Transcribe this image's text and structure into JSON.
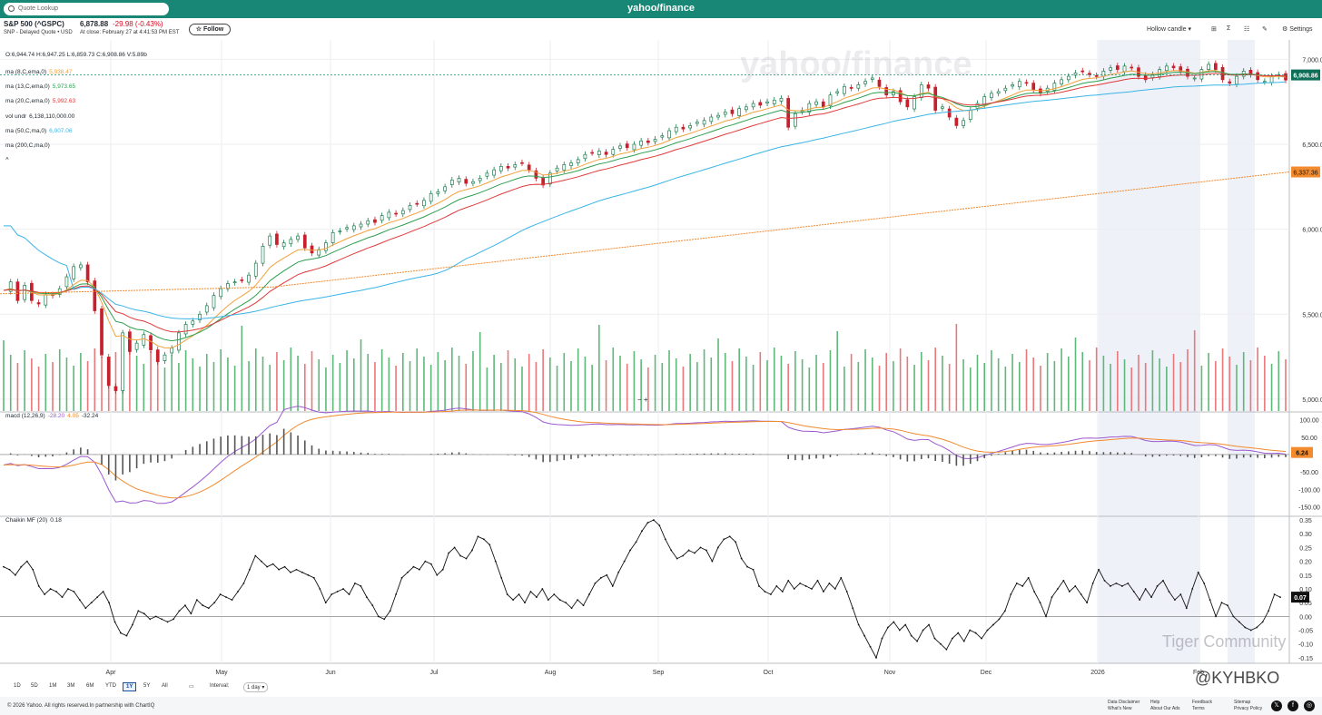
{
  "header": {
    "search_placeholder": "Quote Lookup",
    "logo": "yahoo/finance"
  },
  "quote": {
    "title": "S&P 500 (^GSPC)",
    "subtitle": "SNP - Delayed Quote • USD",
    "price": "6,878.88",
    "change": "-29.98",
    "change_pct": "(-0.43%)",
    "close_time": "At close: February 27 at 4:41:53 PM EST",
    "follow_label": "Follow"
  },
  "toolbar": {
    "chart_type": "Hollow candle",
    "settings": "Settings"
  },
  "legend": {
    "ohlc": "O:6,944.74  H:6,947.25  L:6,859.73  C:6,908.86  V:5.89b",
    "ma8": {
      "label": "ma (8,C,ema,0)",
      "value": "5,938.47",
      "color": "#f2a13b"
    },
    "ma13": {
      "label": "ma (13,C,ema,0)",
      "value": "5,973.65",
      "color": "#2e9e4f"
    },
    "ma20": {
      "label": "ma (20,C,ema,0)",
      "value": "5,992.63",
      "color": "#e03a3a"
    },
    "volundr": {
      "label": "vol undr",
      "value": "6,138,110,000.00"
    },
    "ma50": {
      "label": "ma (50,C,ma,0)",
      "value": "6,007.06",
      "color": "#3ab4e6"
    },
    "ma200": {
      "label": "ma (200,C,ma,0)",
      "value": "",
      "color": "#f28a2e"
    },
    "macd": {
      "label": "macd (12,26,9)",
      "v1": "-28.20",
      "v2": "4.05",
      "v3": "-32.24"
    },
    "cmf": {
      "label": "Chaikin MF (20)",
      "value": "0.18"
    }
  },
  "watermark": "yahoo/finance",
  "overlay_text": {
    "tiger": "Tiger Community",
    "handle": "@KYHBKO",
    "zoom": "−  +"
  },
  "ranges": [
    "1D",
    "5D",
    "1M",
    "3M",
    "6M",
    "YTD",
    "1Y",
    "5Y",
    "All"
  ],
  "selected_range": "1Y",
  "interval_label": "Interval:",
  "interval_value": "1 day",
  "footer": {
    "copyright": "© 2026 Yahoo. All rights reserved.In partnership with ChartIQ",
    "links": [
      "Data Disclaimer",
      "What's New",
      "Help",
      "About Our Ads",
      "Feedback",
      "Terms",
      "Sitemap",
      "Privacy Policy"
    ]
  },
  "chart_data": {
    "type": "line",
    "series_main": "S&P 500 daily close",
    "x_labels": [
      "Apr",
      "May",
      "Jun",
      "Jul",
      "Aug",
      "Sep",
      "Oct",
      "Nov",
      "Dec",
      "2026",
      "Feb"
    ],
    "price_axis": {
      "ticks": [
        "7,000.00",
        "6,500.00",
        "6,000.00",
        "5,500.00",
        "5,000.00"
      ],
      "ylim": [
        4930,
        7050
      ]
    },
    "price_badges": {
      "last": "6,908.86",
      "ma200": "6,337.36"
    },
    "close": [
      5640,
      5690,
      5580,
      5670,
      5580,
      5560,
      5615,
      5610,
      5650,
      5720,
      5780,
      5790,
      5690,
      5520,
      5260,
      5080,
      5050,
      5390,
      5280,
      5330,
      5380,
      5290,
      5220,
      5260,
      5300,
      5390,
      5440,
      5460,
      5500,
      5550,
      5610,
      5650,
      5680,
      5690,
      5700,
      5730,
      5800,
      5900,
      5960,
      5910,
      5920,
      5940,
      5960,
      5890,
      5860,
      5880,
      5920,
      5980,
      5990,
      6010,
      6020,
      6030,
      6050,
      6040,
      6080,
      6100,
      6090,
      6110,
      6140,
      6150,
      6170,
      6210,
      6220,
      6250,
      6290,
      6300,
      6270,
      6280,
      6300,
      6330,
      6350,
      6370,
      6360,
      6380,
      6390,
      6350,
      6300,
      6260,
      6330,
      6360,
      6380,
      6390,
      6410,
      6440,
      6450,
      6460,
      6440,
      6470,
      6490,
      6480,
      6500,
      6520,
      6510,
      6530,
      6550,
      6580,
      6600,
      6590,
      6610,
      6630,
      6640,
      6660,
      6670,
      6690,
      6680,
      6710,
      6720,
      6740,
      6730,
      6750,
      6760,
      6770,
      6600,
      6680,
      6700,
      6740,
      6750,
      6720,
      6790,
      6810,
      6840,
      6830,
      6850,
      6870,
      6890,
      6840,
      6790,
      6810,
      6750,
      6720,
      6780,
      6850,
      6830,
      6700,
      6720,
      6660,
      6610,
      6640,
      6700,
      6740,
      6780,
      6800,
      6810,
      6830,
      6850,
      6870,
      6860,
      6820,
      6800,
      6830,
      6860,
      6880,
      6900,
      6920,
      6930,
      6910,
      6900,
      6930,
      6950,
      6940,
      6960,
      6950,
      6900,
      6880,
      6910,
      6940,
      6960,
      6950,
      6930,
      6900,
      6890,
      6940,
      6970,
      6940,
      6880,
      6860,
      6900,
      6930,
      6910,
      6880,
      6870,
      6900,
      6910,
      6878
    ],
    "ma200_range": [
      5620,
      6337
    ],
    "macd_axis": {
      "ticks": [
        "100.00",
        "50.00",
        "-50.00",
        "-100.00",
        "-150.00"
      ],
      "ylim": [
        -175,
        120
      ],
      "last": "6.24"
    },
    "cmf_axis": {
      "ticks": [
        "0.35",
        "0.30",
        "0.25",
        "0.20",
        "0.15",
        "0.10",
        "0.05",
        "0.00",
        "-0.05",
        "-0.10",
        "-0.15"
      ],
      "ylim": [
        -0.17,
        0.36
      ],
      "last": "0.07"
    },
    "cmf": [
      0.18,
      0.17,
      0.15,
      0.18,
      0.2,
      0.17,
      0.11,
      0.08,
      0.1,
      0.09,
      0.07,
      0.1,
      0.09,
      0.06,
      0.03,
      0.05,
      0.07,
      0.09,
      0.05,
      -0.02,
      -0.06,
      -0.07,
      -0.03,
      0.02,
      0.01,
      -0.01,
      0.0,
      -0.01,
      -0.02,
      -0.01,
      0.02,
      0.04,
      0.01,
      0.06,
      0.04,
      0.03,
      0.05,
      0.08,
      0.07,
      0.06,
      0.09,
      0.12,
      0.17,
      0.22,
      0.2,
      0.18,
      0.19,
      0.17,
      0.18,
      0.16,
      0.17,
      0.16,
      0.15,
      0.14,
      0.1,
      0.05,
      0.08,
      0.09,
      0.1,
      0.08,
      0.12,
      0.11,
      0.07,
      0.04,
      0.0,
      -0.01,
      0.02,
      0.08,
      0.14,
      0.16,
      0.18,
      0.17,
      0.2,
      0.19,
      0.15,
      0.17,
      0.23,
      0.25,
      0.22,
      0.21,
      0.24,
      0.29,
      0.28,
      0.26,
      0.2,
      0.14,
      0.08,
      0.06,
      0.08,
      0.05,
      0.09,
      0.07,
      0.1,
      0.06,
      0.08,
      0.06,
      0.05,
      0.03,
      0.06,
      0.04,
      0.08,
      0.12,
      0.14,
      0.15,
      0.11,
      0.16,
      0.2,
      0.24,
      0.27,
      0.31,
      0.34,
      0.35,
      0.33,
      0.28,
      0.24,
      0.21,
      0.22,
      0.24,
      0.23,
      0.25,
      0.24,
      0.2,
      0.25,
      0.28,
      0.29,
      0.27,
      0.21,
      0.18,
      0.17,
      0.11,
      0.09,
      0.08,
      0.11,
      0.09,
      0.13,
      0.1,
      0.12,
      0.11,
      0.1,
      0.13,
      0.09,
      0.12,
      0.1,
      0.14,
      0.09,
      0.03,
      -0.03,
      -0.07,
      -0.11,
      -0.15,
      -0.08,
      -0.04,
      -0.02,
      -0.05,
      -0.03,
      -0.07,
      -0.09,
      -0.05,
      -0.03,
      -0.08,
      -0.1,
      -0.12,
      -0.08,
      -0.06,
      -0.09,
      -0.05,
      -0.06,
      -0.08,
      -0.05,
      -0.03,
      -0.01,
      0.02,
      0.08,
      0.12,
      0.11,
      0.14,
      0.09,
      0.05,
      0.0,
      0.07,
      0.1,
      0.13,
      0.09,
      0.11,
      0.08,
      0.05
    ],
    "cmf_tail": [
      0.12,
      0.17,
      0.13,
      0.11,
      0.12,
      0.11,
      0.12,
      0.09,
      0.06,
      0.1,
      0.07,
      0.11,
      0.13,
      0.09,
      0.06,
      0.08,
      0.03,
      0.1,
      0.16,
      0.12,
      0.06,
      0.0,
      0.05,
      0.04,
      0.0,
      -0.02,
      -0.04,
      -0.05,
      -0.04,
      -0.02,
      0.02,
      0.08,
      0.07
    ]
  }
}
